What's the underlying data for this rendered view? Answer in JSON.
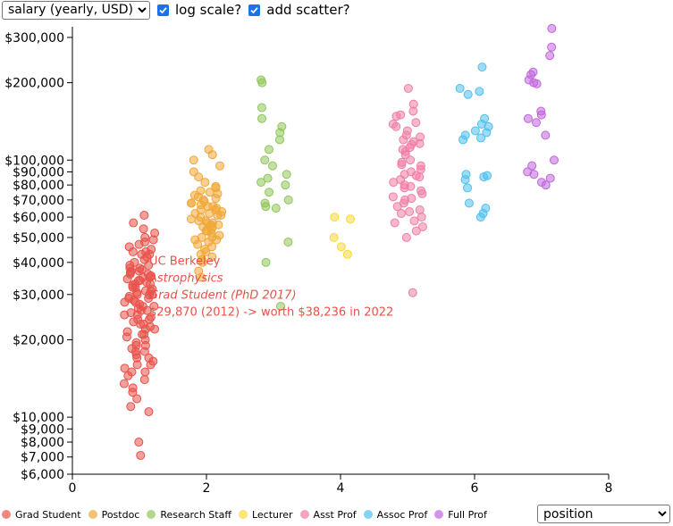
{
  "controls": {
    "metric_select": {
      "value": "salary (yearly, USD)"
    },
    "log_scale": {
      "label": "log scale?",
      "checked": true
    },
    "add_scatter": {
      "label": "add scatter?",
      "checked": true
    },
    "x_select": {
      "value": "position"
    }
  },
  "chart_data": {
    "type": "scatter",
    "title": "",
    "xlabel": "",
    "ylabel": "",
    "xlim": [
      0,
      8
    ],
    "ylim": [
      6000,
      330000
    ],
    "y_scale": "log",
    "x_ticks": [
      "0",
      "2",
      "4",
      "6",
      "8"
    ],
    "y_ticks": [
      {
        "value": 300000,
        "label": "$300,000"
      },
      {
        "value": 200000,
        "label": "$200,000"
      },
      {
        "value": 100000,
        "label": "$100,000"
      },
      {
        "value": 90000,
        "label": "$90,000"
      },
      {
        "value": 80000,
        "label": "$80,000"
      },
      {
        "value": 70000,
        "label": "$70,000"
      },
      {
        "value": 60000,
        "label": "$60,000"
      },
      {
        "value": 50000,
        "label": "$50,000"
      },
      {
        "value": 40000,
        "label": "$40,000"
      },
      {
        "value": 30000,
        "label": "$30,000"
      },
      {
        "value": 20000,
        "label": "$20,000"
      },
      {
        "value": 10000,
        "label": "$10,000"
      },
      {
        "value": 9000,
        "label": "$9,000"
      },
      {
        "value": 8000,
        "label": "$8,000"
      },
      {
        "value": 7000,
        "label": "$7,000"
      },
      {
        "value": 6000,
        "label": "$6,000"
      }
    ],
    "legend_position": "bottom-left",
    "series": [
      {
        "name": "Grad Student",
        "color": "#e8524a",
        "x_center": 1.0,
        "values": [
          61000,
          57000,
          54000,
          52000,
          50000,
          48000,
          46000,
          45000,
          44000,
          43000,
          42000,
          40000,
          39000,
          38000,
          37500,
          37000,
          36500,
          36000,
          35500,
          35000,
          34500,
          34000,
          33500,
          33000,
          32500,
          32000,
          31500,
          31000,
          30500,
          30000,
          29870,
          29500,
          29000,
          28500,
          28000,
          27500,
          27000,
          26500,
          26000,
          25500,
          25000,
          24500,
          24000,
          23500,
          23000,
          22500,
          22000,
          21500,
          21000,
          20500,
          20000,
          19500,
          19000,
          18500,
          18000,
          17500,
          17000,
          16500,
          16000,
          15500,
          15000,
          14500,
          14000,
          13500,
          13000,
          12500,
          11800,
          11000,
          10500,
          8000,
          7100,
          33000,
          35000,
          31000,
          28000,
          26000,
          24000,
          38000,
          41000,
          44000,
          47000,
          49000,
          36000,
          34000,
          30000,
          27000,
          25000,
          23000,
          21000,
          19000,
          17000,
          15000,
          32000,
          29000,
          22000,
          37000,
          39000,
          43000,
          18000,
          16000
        ]
      },
      {
        "name": "Postdoc",
        "color": "#f0a836",
        "x_center": 2.0,
        "values": [
          110000,
          105000,
          100000,
          95000,
          90000,
          86000,
          82000,
          78000,
          76000,
          74000,
          72000,
          71000,
          70000,
          69000,
          68000,
          67000,
          66000,
          65000,
          64000,
          63000,
          62000,
          61000,
          60000,
          59000,
          58000,
          57000,
          56000,
          55000,
          54000,
          53000,
          52000,
          51000,
          50000,
          49000,
          48000,
          47000,
          46000,
          45000,
          43000,
          42000,
          41000,
          40000,
          37000,
          35000,
          73000,
          66000,
          61000,
          57000,
          53000,
          49000,
          79000,
          64000,
          58000,
          44000,
          62000,
          56000,
          50000,
          68000,
          75000,
          55000
        ]
      },
      {
        "name": "Research Staff",
        "color": "#8fc65a",
        "x_center": 3.0,
        "values": [
          205000,
          200000,
          160000,
          145000,
          135000,
          128000,
          120000,
          110000,
          100000,
          95000,
          88000,
          85000,
          82000,
          80000,
          75000,
          70000,
          68000,
          66000,
          65000,
          48000,
          40000,
          27000
        ]
      },
      {
        "name": "Lecturer",
        "color": "#f7d93a",
        "x_center": 4.0,
        "values": [
          60000,
          59000,
          50000,
          46000,
          43000
        ]
      },
      {
        "name": "Asst Prof",
        "color": "#f07ea6",
        "x_center": 5.0,
        "values": [
          190000,
          165000,
          155000,
          150000,
          148000,
          140000,
          138000,
          135000,
          130000,
          125000,
          120000,
          118000,
          115000,
          112000,
          110000,
          108000,
          105000,
          100000,
          98000,
          95000,
          92000,
          90000,
          88000,
          86000,
          84000,
          82000,
          80000,
          78000,
          76000,
          74000,
          72000,
          70000,
          68000,
          66000,
          64000,
          62000,
          60000,
          58000,
          55000,
          53000,
          50000,
          30500,
          116000,
          96000,
          87000,
          79000,
          71000,
          63000,
          57000,
          123000
        ]
      },
      {
        "name": "Assoc Prof",
        "color": "#4ec0ee",
        "x_center": 6.0,
        "values": [
          230000,
          190000,
          185000,
          180000,
          145000,
          138000,
          135000,
          130000,
          128000,
          125000,
          120000,
          88000,
          87000,
          86000,
          78000,
          68000,
          65000,
          62000,
          60000,
          122000,
          84000
        ]
      },
      {
        "name": "Full Prof",
        "color": "#c166dd",
        "x_center": 7.0,
        "values": [
          325000,
          275000,
          255000,
          220000,
          215000,
          205000,
          200000,
          198000,
          155000,
          150000,
          145000,
          140000,
          125000,
          100000,
          95000,
          90000,
          88000,
          85000,
          82000,
          80000
        ]
      }
    ],
    "annotation": {
      "lines": [
        "UC Berkeley",
        "Astrophysics",
        "Grad Student (PhD 2017)",
        "$29,870 (2012) -> worth $38,236 in 2022"
      ],
      "italic": [
        false,
        true,
        true,
        false
      ],
      "color": "#e8524a",
      "x": 1.2,
      "y": 29870
    }
  }
}
